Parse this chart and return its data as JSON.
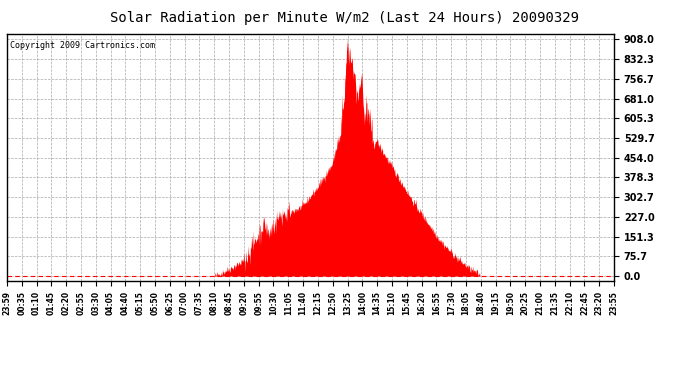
{
  "title": "Solar Radiation per Minute W/m2 (Last 24 Hours) 20090329",
  "copyright": "Copyright 2009 Cartronics.com",
  "bar_color": "#ff0000",
  "background_color": "#ffffff",
  "grid_color": "#aaaaaa",
  "yticks": [
    0.0,
    75.7,
    151.3,
    227.0,
    302.7,
    378.3,
    454.0,
    529.7,
    605.3,
    681.0,
    756.7,
    832.3,
    908.0
  ],
  "ymax": 930.0,
  "ymin": -20.0,
  "xtick_labels": [
    "23:59",
    "00:35",
    "01:10",
    "01:45",
    "02:20",
    "02:55",
    "03:30",
    "04:05",
    "04:40",
    "05:15",
    "05:50",
    "06:25",
    "07:00",
    "07:35",
    "08:10",
    "08:45",
    "09:20",
    "09:55",
    "10:30",
    "11:05",
    "11:40",
    "12:15",
    "12:50",
    "13:25",
    "14:00",
    "14:35",
    "15:10",
    "15:45",
    "16:20",
    "16:55",
    "17:30",
    "18:05",
    "18:40",
    "19:15",
    "19:50",
    "20:25",
    "21:00",
    "21:35",
    "22:10",
    "22:45",
    "23:20",
    "23:55"
  ]
}
